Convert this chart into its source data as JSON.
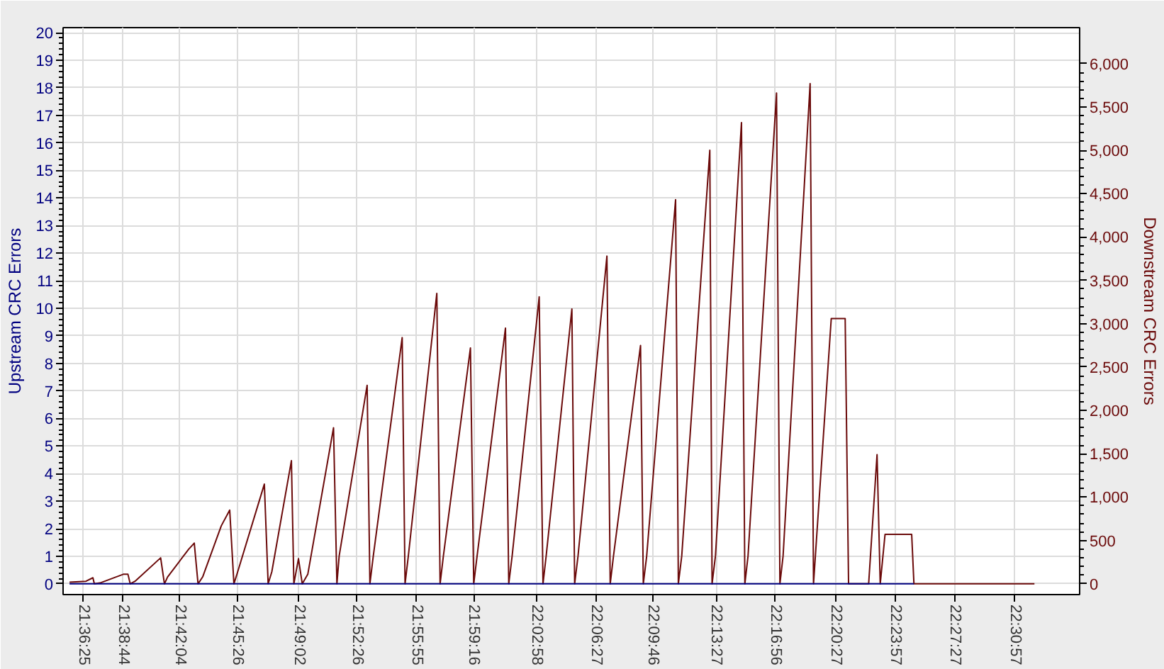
{
  "chart_data": {
    "type": "line",
    "ylabel": "Upstream CRC Errors",
    "y2label": "Downstream CRC Errors",
    "xlim": [
      21.587,
      22.579
    ],
    "xticks": [
      {
        "value": 21.60694,
        "label": "21:36:25"
      },
      {
        "value": 21.64556,
        "label": "21:38:44"
      },
      {
        "value": 21.70111,
        "label": "21:42:04"
      },
      {
        "value": 21.75722,
        "label": "21:45:26"
      },
      {
        "value": 21.81722,
        "label": "21:49:02"
      },
      {
        "value": 21.87389,
        "label": "21:52:26"
      },
      {
        "value": 21.93194,
        "label": "21:55:55"
      },
      {
        "value": 21.98778,
        "label": "21:59:16"
      },
      {
        "value": 22.04944,
        "label": "22:02:58"
      },
      {
        "value": 22.1075,
        "label": "22:06:27"
      },
      {
        "value": 22.16278,
        "label": "22:09:46"
      },
      {
        "value": 22.22417,
        "label": "22:13:27"
      },
      {
        "value": 22.28222,
        "label": "22:16:56"
      },
      {
        "value": 22.34083,
        "label": "22:20:27"
      },
      {
        "value": 22.39917,
        "label": "22:23:57"
      },
      {
        "value": 22.4575,
        "label": "22:27:27"
      },
      {
        "value": 22.51583,
        "label": "22:30:57"
      }
    ],
    "ylim": [
      -0.39,
      20.18
    ],
    "yticks": [
      0,
      1,
      2,
      3,
      4,
      5,
      6,
      7,
      8,
      9,
      10,
      11,
      12,
      13,
      14,
      15,
      16,
      17,
      18,
      19,
      20
    ],
    "y2lim": [
      -124,
      6415
    ],
    "y2ticks": [
      0,
      500,
      {
        "value": 1000,
        "label": "1,000"
      },
      {
        "value": 1500,
        "label": "1,500"
      },
      {
        "value": 2000,
        "label": "2,000"
      },
      {
        "value": 2500,
        "label": "2,500"
      },
      {
        "value": 3000,
        "label": "3,000"
      },
      {
        "value": 3500,
        "label": "3,500"
      },
      {
        "value": 4000,
        "label": "4,000"
      },
      {
        "value": 4500,
        "label": "4,500"
      },
      {
        "value": 5000,
        "label": "5,000"
      },
      {
        "value": 5500,
        "label": "5,500"
      },
      {
        "value": 6000,
        "label": "6,000"
      }
    ],
    "grid": true,
    "series": [
      {
        "color": "#6b0a0a",
        "axis": "y2",
        "x": [
          21.5933,
          21.6093,
          21.6161,
          21.6175,
          21.623,
          21.6457,
          21.6503,
          21.6525,
          21.6572,
          21.6822,
          21.6859,
          21.689,
          21.7096,
          21.715,
          21.7187,
          21.7232,
          21.7414,
          21.7496,
          21.7537,
          21.7574,
          21.7834,
          21.7871,
          21.7907,
          21.8098,
          21.8122,
          21.8167,
          21.8204,
          21.8258,
          21.8509,
          21.8542,
          21.8564,
          21.8837,
          21.8864,
          21.8897,
          21.9179,
          21.9207,
          21.9239,
          21.9517,
          21.9549,
          21.9581,
          21.9845,
          21.9877,
          21.991,
          22.0187,
          22.0219,
          22.0252,
          22.0516,
          22.0553,
          22.0584,
          22.0835,
          22.0862,
          22.0895,
          22.1177,
          22.1209,
          22.1241,
          22.1505,
          22.1532,
          22.1565,
          22.1847,
          22.1874,
          22.1907,
          22.2181,
          22.2203,
          22.2236,
          22.249,
          22.2523,
          22.2554,
          22.2832,
          22.2865,
          22.2896,
          22.316,
          22.3193,
          22.3366,
          22.3502,
          22.3535,
          22.3731,
          22.3813,
          22.3844,
          22.3891,
          22.4151,
          22.4173,
          22.5349
        ],
        "values": [
          20,
          30,
          70,
          0,
          10,
          110,
          110,
          0,
          30,
          300,
          0,
          80,
          400,
          470,
          0,
          80,
          670,
          850,
          0,
          140,
          1150,
          0,
          140,
          1420,
          0,
          290,
          0,
          110,
          1800,
          0,
          320,
          2290,
          0,
          320,
          2840,
          0,
          320,
          3350,
          0,
          320,
          2720,
          0,
          320,
          2950,
          0,
          320,
          3310,
          0,
          320,
          3170,
          0,
          320,
          3780,
          0,
          320,
          2750,
          0,
          320,
          4430,
          0,
          320,
          5000,
          0,
          320,
          5320,
          0,
          320,
          5660,
          0,
          320,
          5770,
          0,
          3060,
          3060,
          0,
          0,
          1490,
          0,
          570,
          570,
          0,
          0
        ]
      },
      {
        "color": "#000080",
        "x": [
          21.5933,
          22.4173
        ],
        "values": [
          0,
          0
        ]
      }
    ]
  }
}
